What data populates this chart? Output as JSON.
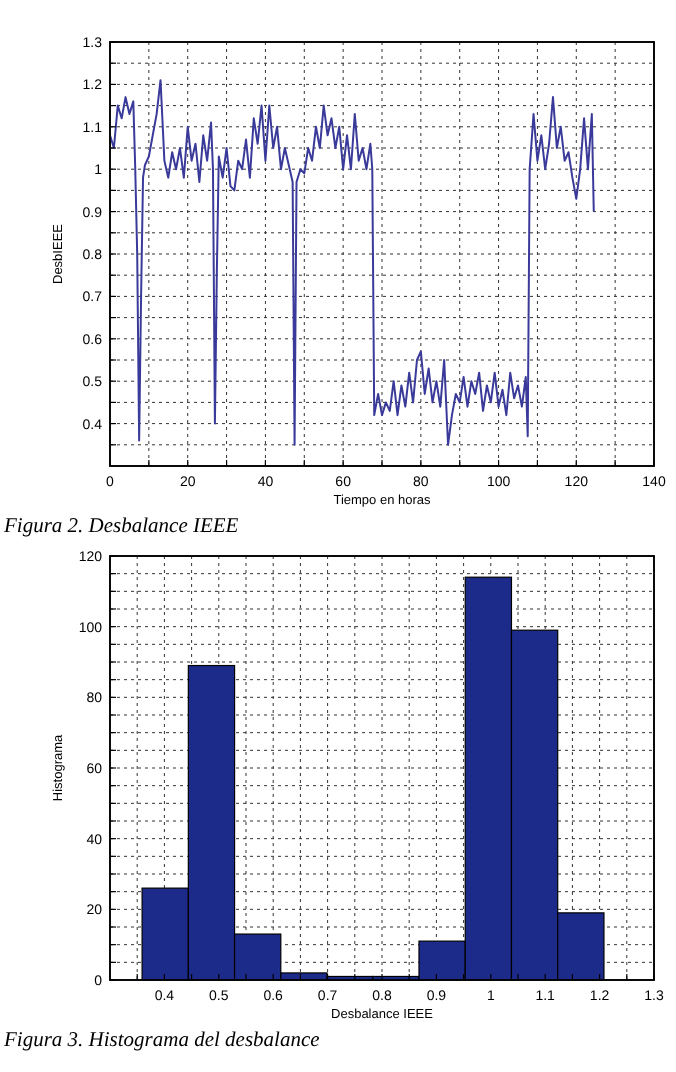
{
  "chart_data": [
    {
      "type": "line",
      "title": "Figura 2. Desbalance IEEE",
      "xlabel": "Tiempo en horas",
      "ylabel": "DesbIEEE",
      "xlim": [
        0,
        140
      ],
      "ylim": [
        0.3,
        1.3
      ],
      "xticks": [
        0,
        {
          "value": 10,
          "label": null
        },
        20,
        {
          "value": 30,
          "label": null
        },
        40,
        {
          "value": 50,
          "label": null
        },
        60,
        {
          "value": 70,
          "label": null
        },
        80,
        {
          "value": 90,
          "label": null
        },
        100,
        {
          "value": 110,
          "label": null
        },
        120,
        {
          "value": 130,
          "label": null
        },
        140
      ],
      "yticks": [
        {
          "value": 0.35,
          "label": null
        },
        0.4,
        {
          "value": 0.45,
          "label": null
        },
        0.5,
        {
          "value": 0.55,
          "label": null
        },
        0.6,
        {
          "value": 0.65,
          "label": null
        },
        0.7,
        {
          "value": 0.75,
          "label": null
        },
        0.8,
        {
          "value": 0.85,
          "label": null
        },
        0.9,
        {
          "value": 0.95,
          "label": null
        },
        1,
        {
          "value": 1.05,
          "label": null
        },
        1.1,
        {
          "value": 1.15,
          "label": null
        },
        1.2,
        {
          "value": 1.25,
          "label": null
        },
        1.3
      ],
      "grid": true,
      "series": [
        {
          "color": "#3a3a9a",
          "x": [
            0,
            1,
            2,
            3,
            4,
            5,
            6,
            6.5,
            7,
            7.5,
            8,
            8.5,
            9,
            10,
            11,
            12,
            13,
            14,
            15,
            16,
            17,
            18,
            19,
            20,
            21,
            22,
            23,
            24,
            25,
            26,
            26.5,
            27,
            27.5,
            28,
            29,
            30,
            31,
            32,
            33,
            34,
            35,
            36,
            37,
            38,
            39,
            40,
            41,
            42,
            43,
            44,
            45,
            46,
            47,
            47.5,
            48,
            49,
            50,
            51,
            52,
            53,
            54,
            55,
            56,
            57,
            58,
            59,
            60,
            61,
            62,
            63,
            64,
            65,
            66,
            67,
            67.5,
            68,
            69,
            70,
            71,
            72,
            73,
            74,
            75,
            76,
            77,
            78,
            79,
            80,
            81,
            82,
            83,
            84,
            85,
            86,
            87,
            88,
            89,
            90,
            91,
            92,
            93,
            94,
            95,
            96,
            97,
            98,
            99,
            100,
            101,
            102,
            103,
            104,
            105,
            106,
            107,
            107.5,
            108,
            109,
            110,
            111,
            112,
            113,
            114,
            115,
            116,
            117,
            118,
            119,
            120,
            121,
            122,
            123,
            124,
            124.5
          ],
          "values": [
            1.08,
            1.05,
            1.15,
            1.12,
            1.17,
            1.13,
            1.16,
            1.0,
            0.8,
            0.36,
            0.7,
            0.98,
            1.01,
            1.03,
            1.08,
            1.13,
            1.21,
            1.02,
            0.98,
            1.04,
            1.0,
            1.05,
            0.98,
            1.1,
            1.02,
            1.06,
            0.97,
            1.08,
            1.02,
            1.11,
            1.0,
            0.4,
            0.76,
            1.03,
            0.98,
            1.05,
            0.96,
            0.95,
            1.02,
            1.0,
            1.07,
            0.98,
            1.12,
            1.06,
            1.15,
            1.02,
            1.15,
            1.05,
            1.1,
            1.0,
            1.05,
            1.01,
            0.97,
            0.35,
            0.97,
            1.0,
            0.99,
            1.05,
            1.02,
            1.1,
            1.05,
            1.15,
            1.08,
            1.12,
            1.05,
            1.1,
            1.0,
            1.08,
            1.0,
            1.13,
            1.02,
            1.05,
            1.0,
            1.06,
            1.0,
            0.42,
            0.47,
            0.42,
            0.45,
            0.43,
            0.5,
            0.42,
            0.49,
            0.44,
            0.52,
            0.45,
            0.55,
            0.57,
            0.47,
            0.53,
            0.45,
            0.5,
            0.44,
            0.55,
            0.35,
            0.42,
            0.47,
            0.45,
            0.51,
            0.44,
            0.5,
            0.47,
            0.52,
            0.43,
            0.49,
            0.45,
            0.52,
            0.44,
            0.48,
            0.42,
            0.52,
            0.46,
            0.49,
            0.44,
            0.51,
            0.37,
            1.0,
            1.13,
            1.02,
            1.08,
            1.0,
            1.06,
            1.17,
            1.05,
            1.1,
            1.02,
            1.04,
            0.98,
            0.93,
            1.0,
            1.12,
            1.0,
            1.13,
            0.9
          ]
        }
      ]
    },
    {
      "type": "histogram",
      "title": "Figura 3. Histograma del desbalance",
      "xlabel": "Desbalance IEEE",
      "ylabel": "Histograma",
      "xlim": [
        0.3,
        1.3
      ],
      "ylim": [
        0,
        120
      ],
      "xticks": [
        {
          "value": 0.35,
          "label": null
        },
        0.4,
        {
          "value": 0.45,
          "label": null
        },
        0.5,
        {
          "value": 0.55,
          "label": null
        },
        0.6,
        {
          "value": 0.65,
          "label": null
        },
        0.7,
        {
          "value": 0.75,
          "label": null
        },
        0.8,
        {
          "value": 0.85,
          "label": null
        },
        0.9,
        {
          "value": 0.95,
          "label": null
        },
        1,
        {
          "value": 1.05,
          "label": null
        },
        1.1,
        {
          "value": 1.15,
          "label": null
        },
        1.2,
        {
          "value": 1.25,
          "label": null
        },
        1.3
      ],
      "yticks": [
        0,
        {
          "value": 5,
          "label": null
        },
        {
          "value": 10,
          "label": null
        },
        {
          "value": 15,
          "label": null
        },
        20,
        {
          "value": 25,
          "label": null
        },
        {
          "value": 30,
          "label": null
        },
        {
          "value": 35,
          "label": null
        },
        40,
        {
          "value": 45,
          "label": null
        },
        {
          "value": 50,
          "label": null
        },
        {
          "value": 55,
          "label": null
        },
        60,
        {
          "value": 65,
          "label": null
        },
        {
          "value": 70,
          "label": null
        },
        {
          "value": 75,
          "label": null
        },
        80,
        {
          "value": 85,
          "label": null
        },
        {
          "value": 90,
          "label": null
        },
        {
          "value": 95,
          "label": null
        },
        100,
        {
          "value": 105,
          "label": null
        },
        {
          "value": 110,
          "label": null
        },
        {
          "value": 115,
          "label": null
        },
        120
      ],
      "grid": true,
      "color": "#1c2a8a",
      "bins": [
        0.359,
        0.444,
        0.529,
        0.614,
        0.699,
        0.783,
        0.868,
        0.953,
        1.038,
        1.123,
        1.208
      ],
      "values": [
        26,
        89,
        13,
        2,
        1,
        1,
        11,
        114,
        99,
        19
      ]
    }
  ]
}
